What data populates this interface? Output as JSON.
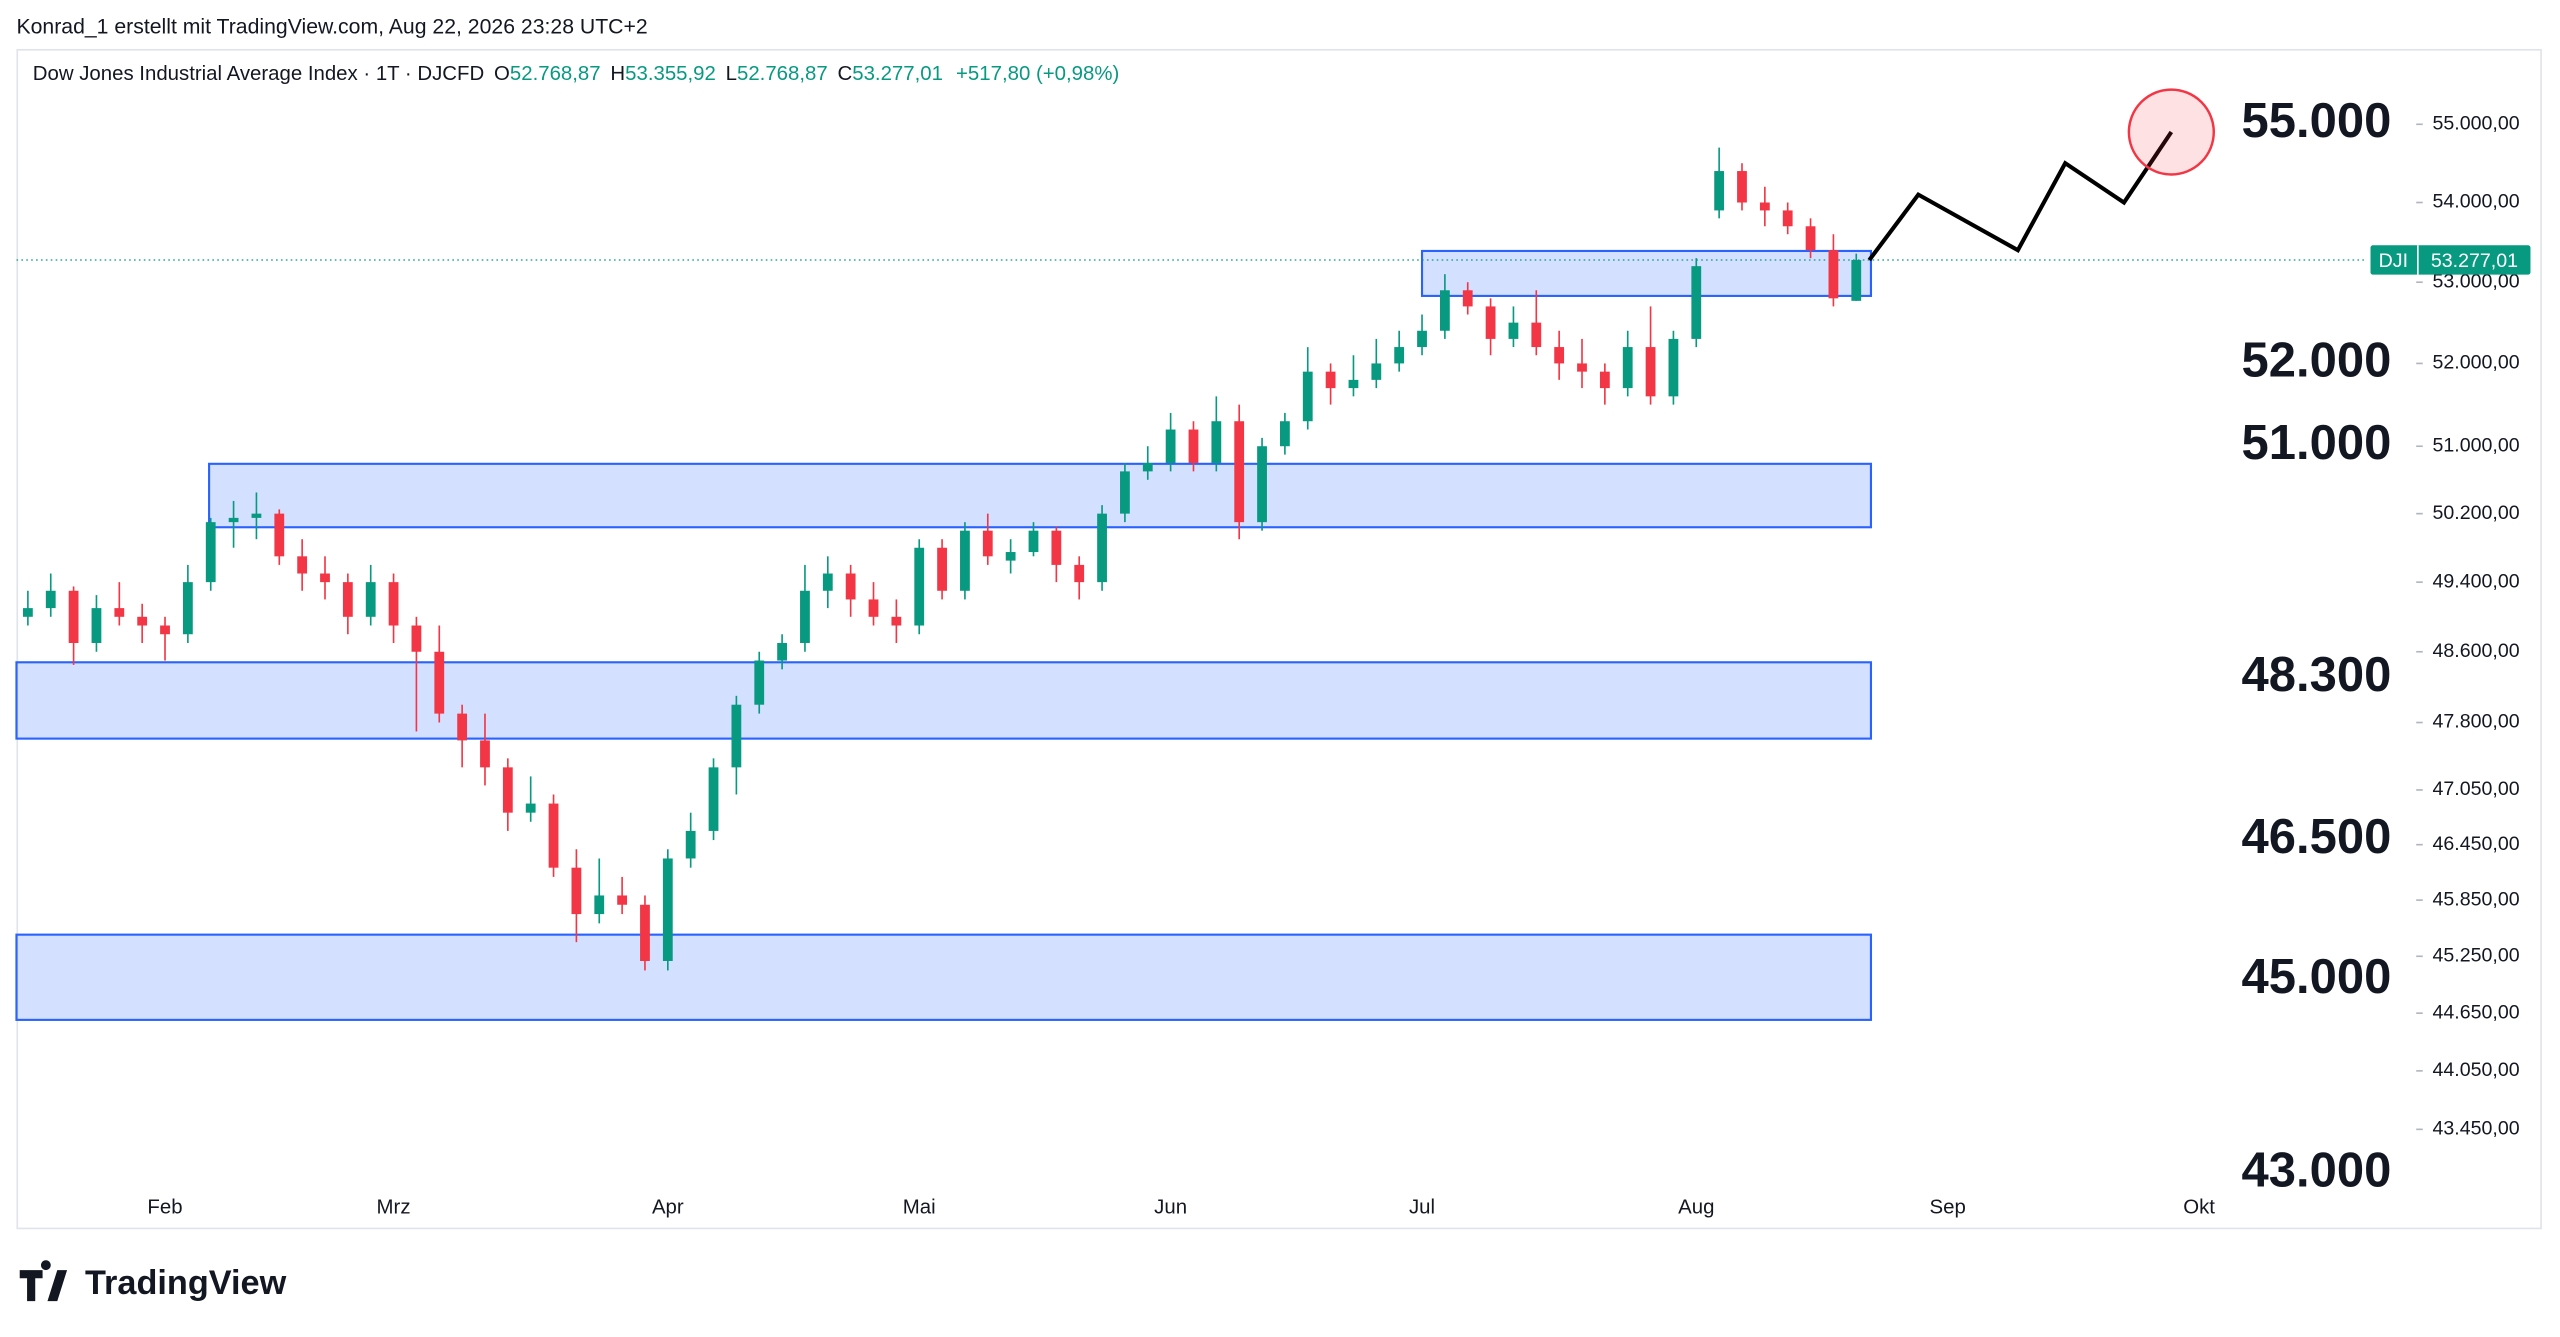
{
  "header": {
    "author_line": "Konrad_1 erstellt mit TradingView.com, Aug 22, 2026 23:28 UTC+2",
    "brand": "TradingView"
  },
  "chart_data": {
    "type": "candlestick",
    "symbol": "Dow Jones Industrial Average Index · 1T · DJCFD",
    "ohlc_legend": [
      {
        "key": "O",
        "value": "52.768,87"
      },
      {
        "key": "H",
        "value": "53.355,92"
      },
      {
        "key": "L",
        "value": "52.768,87"
      },
      {
        "key": "C",
        "value": "53.277,01"
      }
    ],
    "change": "+517,80 (+0,98%)",
    "up_color": "#089981",
    "down_color": "#f23645",
    "log_scale": true,
    "grid": false,
    "ylim": [
      55980,
      42460
    ],
    "yticks": [
      {
        "value": 55000,
        "label": "55.000,00"
      },
      {
        "value": 54000,
        "label": "54.000,00"
      },
      {
        "value": 53000,
        "label": "53.000,00"
      },
      {
        "value": 52000,
        "label": "52.000,00"
      },
      {
        "value": 51000,
        "label": "51.000,00"
      },
      {
        "value": 50200,
        "label": "50.200,00"
      },
      {
        "value": 49400,
        "label": "49.400,00"
      },
      {
        "value": 48600,
        "label": "48.600,00"
      },
      {
        "value": 47800,
        "label": "47.800,00"
      },
      {
        "value": 47050,
        "label": "47.050,00"
      },
      {
        "value": 46450,
        "label": "46.450,00"
      },
      {
        "value": 45850,
        "label": "45.850,00"
      },
      {
        "value": 45250,
        "label": "45.250,00"
      },
      {
        "value": 44650,
        "label": "44.650,00"
      },
      {
        "value": 44050,
        "label": "44.050,00"
      },
      {
        "value": 43450,
        "label": "43.450,00"
      }
    ],
    "categories": [
      null,
      null,
      null,
      null,
      null,
      null,
      "Feb",
      null,
      null,
      null,
      null,
      null,
      null,
      null,
      null,
      null,
      "Mrz",
      null,
      null,
      null,
      null,
      null,
      null,
      null,
      null,
      null,
      null,
      null,
      "Apr",
      null,
      null,
      null,
      null,
      null,
      null,
      null,
      null,
      null,
      null,
      "Mai",
      null,
      null,
      null,
      null,
      null,
      null,
      null,
      null,
      null,
      null,
      "Jun",
      null,
      null,
      null,
      null,
      null,
      null,
      null,
      null,
      null,
      null,
      "Jul",
      null,
      null,
      null,
      null,
      null,
      null,
      null,
      null,
      null,
      null,
      null,
      "Aug",
      null,
      null,
      null,
      null,
      null,
      null,
      null,
      null,
      null,
      null,
      "Sep",
      null,
      null,
      null,
      null,
      null,
      null,
      null,
      null,
      null,
      null,
      "Okt",
      null,
      null,
      null,
      null,
      null,
      null,
      null,
      null,
      null
    ],
    "open": [
      49000,
      49100,
      49300,
      48700,
      49100,
      49000,
      48900,
      48800,
      49400,
      50100,
      50150,
      50200,
      49700,
      49500,
      49400,
      49000,
      49400,
      48900,
      48600,
      47900,
      47600,
      47300,
      46800,
      46900,
      46200,
      45700,
      45900,
      45800,
      45200,
      46300,
      46600,
      47300,
      48000,
      48500,
      48700,
      49300,
      49500,
      49200,
      49000,
      48900,
      49800,
      49300,
      50000,
      49650,
      49750,
      50000,
      49600,
      49400,
      50200,
      50700,
      50800,
      51200,
      50800,
      51300,
      50100,
      51000,
      51300,
      51900,
      51700,
      51800,
      52000,
      52200,
      52400,
      52900,
      52700,
      52300,
      52500,
      52200,
      52000,
      51900,
      51700,
      52200,
      51600,
      52300,
      53900,
      54400,
      54000,
      53900,
      53700,
      53400,
      52768.87,
      null,
      null,
      null,
      null,
      null,
      null,
      null,
      null,
      null,
      null,
      null,
      null,
      null,
      null,
      null,
      null,
      null,
      null,
      null,
      null,
      null,
      null,
      null,
      null
    ],
    "high": [
      49300,
      49500,
      49350,
      49250,
      49400,
      49150,
      49000,
      49600,
      50150,
      50350,
      50450,
      50250,
      49900,
      49700,
      49500,
      49600,
      49500,
      49000,
      48900,
      48000,
      47900,
      47400,
      47200,
      47000,
      46400,
      46300,
      46100,
      45900,
      46400,
      46800,
      47400,
      48100,
      48600,
      48800,
      49600,
      49700,
      49600,
      49400,
      49200,
      49900,
      49900,
      50100,
      50200,
      49900,
      50100,
      50050,
      49700,
      50300,
      50800,
      51000,
      51400,
      51300,
      51600,
      51500,
      51100,
      51400,
      52200,
      52000,
      52100,
      52300,
      52400,
      52600,
      53100,
      53000,
      52800,
      52700,
      52900,
      52400,
      52300,
      52000,
      52400,
      52700,
      52400,
      53300,
      54700,
      54500,
      54200,
      54000,
      53800,
      53600,
      53355.92,
      null,
      null,
      null,
      null,
      null,
      null,
      null,
      null,
      null,
      null,
      null,
      null,
      null,
      null,
      null,
      null,
      null,
      null,
      null,
      null,
      null,
      null,
      null,
      null
    ],
    "low": [
      48900,
      49000,
      48450,
      48600,
      48900,
      48700,
      48500,
      48700,
      49300,
      49800,
      49900,
      49600,
      49300,
      49200,
      48800,
      48900,
      48700,
      47700,
      47800,
      47300,
      47100,
      46600,
      46700,
      46100,
      45400,
      45600,
      45700,
      45100,
      45100,
      46200,
      46500,
      47000,
      47900,
      48400,
      48600,
      49100,
      49000,
      48900,
      48700,
      48800,
      49200,
      49200,
      49600,
      49500,
      49700,
      49400,
      49200,
      49300,
      50100,
      50600,
      50700,
      50700,
      50700,
      49900,
      50000,
      50900,
      51200,
      51500,
      51600,
      51700,
      51900,
      52100,
      52300,
      52600,
      52100,
      52200,
      52100,
      51800,
      51700,
      51500,
      51600,
      51500,
      51500,
      52200,
      53800,
      53900,
      53700,
      53600,
      53300,
      52700,
      52768.87,
      null,
      null,
      null,
      null,
      null,
      null,
      null,
      null,
      null,
      null,
      null,
      null,
      null,
      null,
      null,
      null,
      null,
      null,
      null,
      null,
      null,
      null,
      null,
      null
    ],
    "close": [
      49100,
      49300,
      48700,
      49100,
      49000,
      48900,
      48800,
      49400,
      50100,
      50150,
      50200,
      49700,
      49500,
      49400,
      49000,
      49400,
      48900,
      48600,
      47900,
      47600,
      47300,
      46800,
      46900,
      46200,
      45700,
      45900,
      45800,
      45200,
      46300,
      46600,
      47300,
      48000,
      48500,
      48700,
      49300,
      49500,
      49200,
      49000,
      48900,
      49800,
      49300,
      50000,
      49700,
      49750,
      50000,
      49600,
      49400,
      50200,
      50700,
      50800,
      51200,
      50800,
      51300,
      50100,
      51000,
      51300,
      51900,
      51700,
      51800,
      52000,
      52200,
      52400,
      52900,
      52700,
      52300,
      52500,
      52200,
      52000,
      51900,
      51700,
      52200,
      51600,
      52300,
      53200,
      54400,
      54000,
      53900,
      53700,
      53400,
      52800,
      53277.01,
      null,
      null,
      null,
      null,
      null,
      null,
      null,
      null,
      null,
      null,
      null,
      null,
      null,
      null,
      null,
      null,
      null,
      null,
      null,
      null,
      null,
      null,
      null,
      null
    ],
    "zones": [
      {
        "top": 50790,
        "bottom": 50040
      },
      {
        "top": 48480,
        "bottom": 47620
      },
      {
        "top": 45480,
        "bottom": 44580
      },
      {
        "top": 53390,
        "bottom": 52830
      }
    ],
    "projection": {
      "color": "#000000",
      "values": [
        53277.01,
        54100,
        53400,
        54500,
        54000,
        54900
      ]
    },
    "levels": [
      {
        "value": 55000,
        "label": "55.000"
      },
      {
        "value": 52000,
        "label": "52.000"
      },
      {
        "value": 51000,
        "label": "51.000"
      },
      {
        "value": 48300,
        "label": "48.300"
      },
      {
        "value": 46500,
        "label": "46.500"
      },
      {
        "value": 45000,
        "label": "45.000"
      },
      {
        "value": 43000,
        "label": "43.000"
      }
    ],
    "price_tag": {
      "name": "DJI",
      "value": 53277.01,
      "label": "53.277,01"
    }
  }
}
